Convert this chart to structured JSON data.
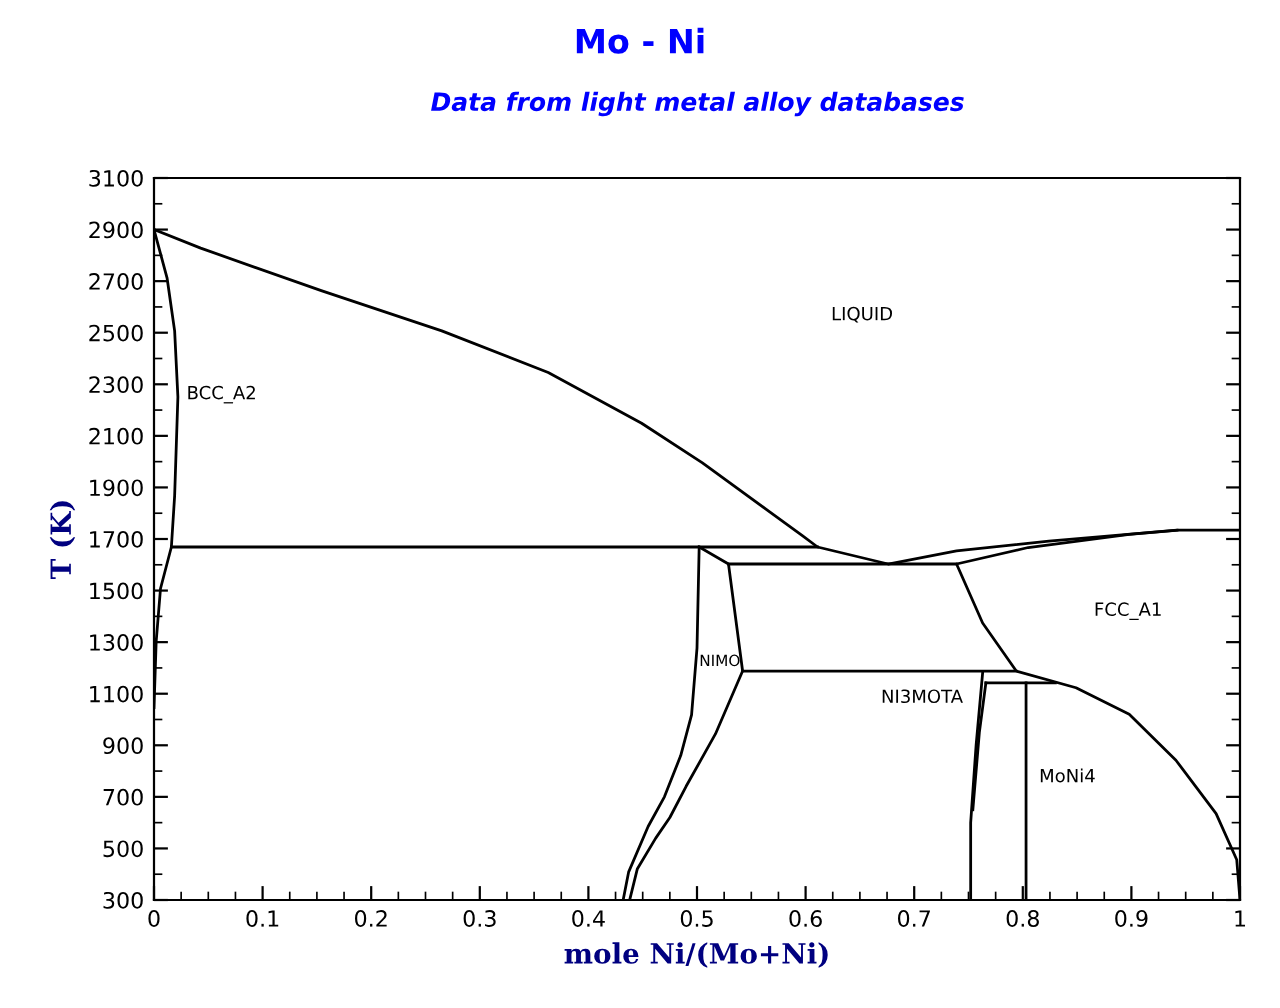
{
  "chart_data": {
    "type": "line",
    "title": "Mo - Ni",
    "subtitle": "Data from light metal alloy databases",
    "xlabel": "mole Ni/(Mo+Ni)",
    "ylabel": "T (K)",
    "xlim": [
      0,
      1
    ],
    "ylim": [
      300,
      3100
    ],
    "xticks": [
      {
        "value": 0,
        "label": "0"
      },
      0.1,
      0.2,
      0.3,
      0.4,
      0.5,
      0.6,
      0.7,
      0.8,
      0.9,
      {
        "value": 1,
        "label": "1"
      }
    ],
    "yticks": [
      300,
      500,
      700,
      900,
      1100,
      1300,
      1500,
      1700,
      1900,
      2100,
      2300,
      2500,
      2700,
      2900,
      3100
    ],
    "grid": false,
    "legend": false,
    "marker": "none",
    "line_style": "solid",
    "series": [
      {
        "color": "#000000",
        "x": [
          0,
          0.043,
          0.154,
          0.265,
          0.363,
          0.449,
          0.505,
          0.597,
          0.611,
          0.676,
          0.739,
          0.824,
          0.942,
          1.0
        ],
        "values": [
          2900,
          2828,
          2663,
          2507,
          2346,
          2149,
          1995,
          1713,
          1669,
          1603,
          1654,
          1692,
          1734,
          1734
        ]
      },
      {
        "color": "#000000",
        "x": [
          0.529,
          0.739,
          0.805,
          0.898,
          0.942
        ],
        "values": [
          1603,
          1603,
          1667,
          1718,
          1734
        ]
      },
      {
        "color": "#000000",
        "x": [
          0,
          0.012,
          0.019,
          0.022,
          0.019,
          0.016,
          0.006,
          0.002,
          0
        ],
        "values": [
          2900,
          2713,
          2507,
          2251,
          1867,
          1669,
          1508,
          1303,
          1046
        ]
      },
      {
        "color": "#000000",
        "x": [
          0.016,
          0.611
        ],
        "values": [
          1669,
          1669
        ]
      },
      {
        "color": "#000000",
        "x": [
          0.542,
          0.794
        ],
        "values": [
          1188,
          1188
        ]
      },
      {
        "color": "#000000",
        "x": [
          0.502,
          0.5,
          0.495,
          0.485,
          0.47,
          0.455,
          0.437,
          0.432
        ],
        "values": [
          1669,
          1277,
          1018,
          860,
          700,
          585,
          408,
          300
        ]
      },
      {
        "color": "#000000",
        "x": [
          0.502,
          0.529,
          0.542,
          0.517,
          0.49,
          0.475,
          0.462,
          0.445,
          0.438
        ],
        "values": [
          1669,
          1603,
          1188,
          944,
          741,
          620,
          540,
          420,
          300
        ]
      },
      {
        "color": "#000000",
        "x": [
          0.739,
          0.763,
          0.794,
          0.849,
          0.898,
          0.941,
          0.978,
          0.997,
          1.0
        ],
        "values": [
          1603,
          1374,
          1188,
          1123,
          1020,
          842,
          635,
          456,
          300
        ]
      },
      {
        "color": "#000000",
        "x": [
          0.766,
          0.83
        ],
        "values": [
          1142,
          1142
        ]
      },
      {
        "color": "#000000",
        "x": [
          0.803,
          0.803
        ],
        "values": [
          1142,
          300
        ]
      },
      {
        "color": "#000000",
        "x": [
          0.752,
          0.752,
          0.757,
          0.763
        ],
        "values": [
          300,
          600,
          900,
          1180
        ]
      },
      {
        "color": "#000000",
        "x": [
          0.754,
          0.76,
          0.766
        ],
        "values": [
          650,
          950,
          1142
        ]
      }
    ],
    "annotations": [
      "LIQUID",
      "BCC_A2",
      "FCC_A1",
      "NIMO",
      "NI3MOTA",
      "MoNi4"
    ]
  }
}
